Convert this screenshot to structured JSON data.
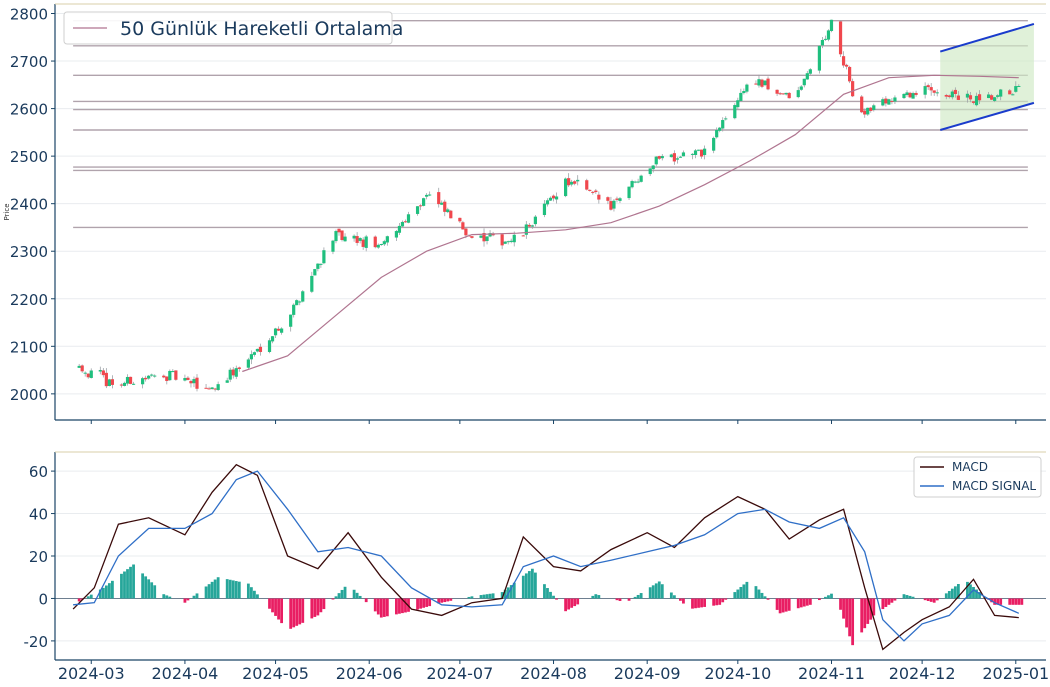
{
  "chart_data": [
    {
      "type": "candlestick",
      "title": "",
      "ylabel": "Price",
      "ylim": [
        1945,
        2820
      ],
      "yticks": [
        2000,
        2100,
        2200,
        2300,
        2400,
        2500,
        2600,
        2700,
        2800
      ],
      "x_range": [
        "2024-02-18",
        "2025-01-11"
      ],
      "grid": true,
      "legend": {
        "placement": "top-left",
        "entries": [
          "50 Günlük Hareketli Ortalama"
        ]
      },
      "series": [
        {
          "name": "50 Günlük Hareketli Ortalama",
          "type": "line",
          "color": "#b07590",
          "x": [
            "2024-04-20",
            "2024-05-05",
            "2024-05-20",
            "2024-06-05",
            "2024-06-20",
            "2024-07-05",
            "2024-07-20",
            "2024-08-05",
            "2024-08-20",
            "2024-09-05",
            "2024-09-20",
            "2024-10-05",
            "2024-10-20",
            "2024-11-05",
            "2024-11-20",
            "2024-12-05",
            "2024-12-20",
            "2025-01-02"
          ],
          "y": [
            2047,
            2080,
            2160,
            2245,
            2300,
            2335,
            2338,
            2345,
            2360,
            2395,
            2440,
            2490,
            2545,
            2630,
            2665,
            2670,
            2668,
            2665
          ]
        }
      ],
      "candles": {
        "up_color": "#1fbf7e",
        "down_color": "#f0474d",
        "anchors": {
          "x": [
            "2024-02-24",
            "2024-03-10",
            "2024-03-25",
            "2024-04-10",
            "2024-04-20",
            "2024-05-05",
            "2024-05-20",
            "2024-06-05",
            "2024-06-20",
            "2024-07-05",
            "2024-07-20",
            "2024-08-05",
            "2024-08-20",
            "2024-09-05",
            "2024-09-20",
            "2024-10-05",
            "2024-10-20",
            "2024-11-01",
            "2024-11-10",
            "2024-11-20",
            "2024-12-05",
            "2024-12-20",
            "2025-01-02"
          ],
          "y": [
            2060,
            2020,
            2040,
            2010,
            2060,
            2160,
            2330,
            2310,
            2420,
            2330,
            2320,
            2450,
            2400,
            2500,
            2510,
            2660,
            2620,
            2780,
            2590,
            2620,
            2640,
            2610,
            2640
          ]
        }
      },
      "support_resistance_levels": [
        2785,
        2732,
        2670,
        2615,
        2598,
        2555,
        2477,
        2470,
        2350
      ],
      "channel": {
        "color": "#1a3ccc",
        "fill": "#cfe9c4",
        "start": "2024-12-07",
        "end": "2025-01-07",
        "upper": [
          2720,
          2778
        ],
        "lower": [
          2555,
          2612
        ]
      }
    },
    {
      "type": "line",
      "title": "",
      "ylim": [
        -29,
        69
      ],
      "yticks": [
        -20,
        0,
        20,
        40,
        60
      ],
      "x_range": [
        "2024-02-18",
        "2025-01-11"
      ],
      "xticks": [
        "2024-03",
        "2024-04",
        "2024-05",
        "2024-06",
        "2024-07",
        "2024-08",
        "2024-09",
        "2024-10",
        "2024-11",
        "2024-12",
        "2025-01"
      ],
      "grid": true,
      "legend": {
        "placement": "top-right",
        "entries": [
          "MACD",
          "MACD SIGNAL"
        ]
      },
      "series": [
        {
          "name": "MACD",
          "color": "#3a0a0a",
          "x": [
            "2024-02-24",
            "2024-03-02",
            "2024-03-10",
            "2024-03-20",
            "2024-04-01",
            "2024-04-10",
            "2024-04-18",
            "2024-04-25",
            "2024-05-05",
            "2024-05-15",
            "2024-05-25",
            "2024-06-05",
            "2024-06-15",
            "2024-06-25",
            "2024-07-05",
            "2024-07-15",
            "2024-07-22",
            "2024-08-01",
            "2024-08-10",
            "2024-08-20",
            "2024-09-01",
            "2024-09-10",
            "2024-09-20",
            "2024-10-01",
            "2024-10-10",
            "2024-10-18",
            "2024-10-28",
            "2024-11-05",
            "2024-11-12",
            "2024-11-18",
            "2024-11-25",
            "2024-12-01",
            "2024-12-10",
            "2024-12-18",
            "2024-12-25",
            "2025-01-02"
          ],
          "y": [
            -5,
            5,
            35,
            38,
            30,
            50,
            63,
            58,
            20,
            14,
            31,
            10,
            -5,
            -8,
            -2,
            0,
            29,
            15,
            13,
            23,
            31,
            24,
            38,
            48,
            42,
            28,
            37,
            42,
            5,
            -24,
            -16,
            -10,
            -4,
            9,
            -8,
            -9
          ]
        },
        {
          "name": "MACD SIGNAL",
          "color": "#2f6fc7",
          "x": [
            "2024-02-24",
            "2024-03-02",
            "2024-03-10",
            "2024-03-20",
            "2024-04-01",
            "2024-04-10",
            "2024-04-18",
            "2024-04-25",
            "2024-05-05",
            "2024-05-15",
            "2024-05-25",
            "2024-06-05",
            "2024-06-15",
            "2024-06-25",
            "2024-07-05",
            "2024-07-15",
            "2024-07-22",
            "2024-08-01",
            "2024-08-10",
            "2024-08-20",
            "2024-09-01",
            "2024-09-10",
            "2024-09-20",
            "2024-10-01",
            "2024-10-10",
            "2024-10-18",
            "2024-10-28",
            "2024-11-05",
            "2024-11-12",
            "2024-11-18",
            "2024-11-25",
            "2024-12-01",
            "2024-12-10",
            "2024-12-18",
            "2024-12-25",
            "2025-01-02"
          ],
          "y": [
            -3,
            -2,
            20,
            33,
            33,
            40,
            56,
            60,
            42,
            22,
            24,
            20,
            5,
            -3,
            -4,
            -3,
            15,
            20,
            15,
            18,
            22,
            25,
            30,
            40,
            42,
            36,
            33,
            38,
            22,
            -10,
            -20,
            -12,
            -8,
            4,
            -2,
            -7
          ]
        }
      ],
      "histogram": {
        "name": "",
        "pos_color": "#26a69a",
        "neg_color": "#e91e63",
        "anchors": {
          "x": [
            "2024-02-24",
            "2024-03-05",
            "2024-03-15",
            "2024-03-25",
            "2024-04-01",
            "2024-04-12",
            "2024-04-22",
            "2024-05-05",
            "2024-05-15",
            "2024-05-25",
            "2024-06-05",
            "2024-06-15",
            "2024-06-25",
            "2024-07-05",
            "2024-07-15",
            "2024-07-25",
            "2024-08-05",
            "2024-08-15",
            "2024-08-25",
            "2024-09-05",
            "2024-09-15",
            "2024-09-25",
            "2024-10-05",
            "2024-10-15",
            "2024-10-25",
            "2024-11-02",
            "2024-11-08",
            "2024-11-15",
            "2024-11-25",
            "2024-12-05",
            "2024-12-15",
            "2024-12-25",
            "2025-01-02"
          ],
          "y": [
            -3,
            5,
            16,
            2,
            -2,
            10,
            7,
            -15,
            -8,
            7,
            -9,
            -6,
            -2,
            1,
            3,
            14,
            -6,
            2,
            -2,
            8,
            -5,
            -3,
            9,
            -7,
            -3,
            3,
            -22,
            -8,
            2,
            -2,
            9,
            -3,
            -3
          ]
        }
      }
    }
  ]
}
